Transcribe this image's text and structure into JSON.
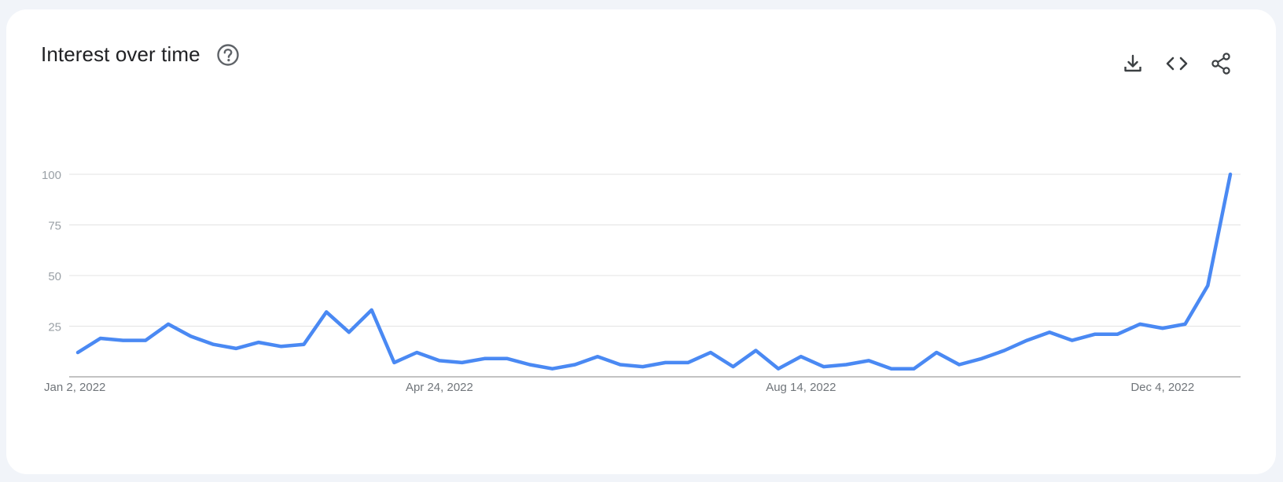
{
  "header": {
    "title": "Interest over time"
  },
  "icons": {
    "help": "help-circle-icon",
    "download": "download-icon",
    "embed": "code-icon",
    "share": "share-icon"
  },
  "colors": {
    "line": "#4a89f3",
    "grid": "#e3e3e3",
    "axis": "#9e9e9e",
    "tick_text": "#9aa0a6",
    "xtick_text": "#70757a",
    "icon": "#3c4043",
    "help_icon": "#5f6368"
  },
  "chart_data": {
    "type": "line",
    "title": "Interest over time",
    "xlabel": "",
    "ylabel": "",
    "ylim": [
      0,
      100
    ],
    "yticks": [
      "25",
      "50",
      "75",
      "100"
    ],
    "xticks": [
      "Jan 2, 2022",
      "Apr 24, 2022",
      "Aug 14, 2022",
      "Dec 4, 2022"
    ],
    "grid": true,
    "x_start": "Jan 2, 2022",
    "x_interval": "1 week",
    "series": [
      {
        "values": [
          12,
          19,
          18,
          18,
          26,
          20,
          16,
          14,
          17,
          15,
          16,
          32,
          22,
          33,
          7,
          12,
          8,
          7,
          9,
          9,
          6,
          4,
          6,
          10,
          6,
          5,
          7,
          7,
          12,
          5,
          13,
          4,
          10,
          5,
          6,
          8,
          4,
          4,
          12,
          6,
          9,
          13,
          18,
          22,
          18,
          21,
          21,
          26,
          24,
          26,
          45,
          100
        ]
      }
    ]
  }
}
